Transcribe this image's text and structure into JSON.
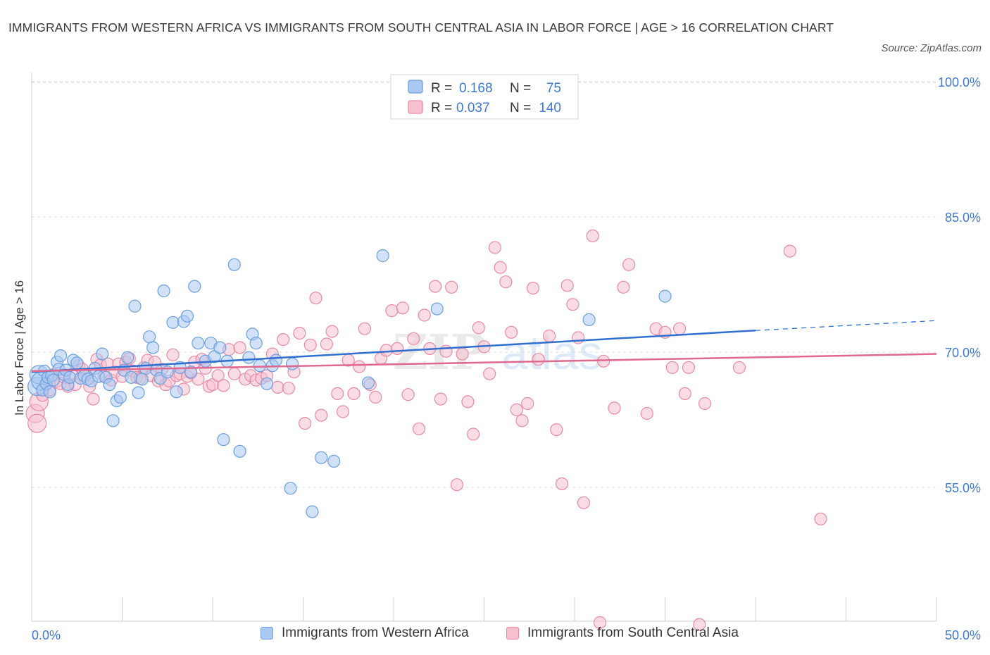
{
  "header": {
    "title": "IMMIGRANTS FROM WESTERN AFRICA VS IMMIGRANTS FROM SOUTH CENTRAL ASIA IN LABOR FORCE | AGE > 16 CORRELATION CHART",
    "source": "Source: ZipAtlas.com"
  },
  "colors": {
    "blue_fill": "#a9c9f2",
    "blue_stroke": "#6a9fe0",
    "blue_line": "#2f6fd0",
    "pink_fill": "#f6c0cf",
    "pink_stroke": "#e98aa5",
    "pink_line": "#e0688e",
    "axis_text": "#3f78d0",
    "grid": "#dddddd"
  },
  "legend_top": {
    "rows": [
      {
        "r_label": "R =",
        "r_value": "0.168",
        "n_label": "N =",
        "n_value": "75"
      },
      {
        "r_label": "R =",
        "r_value": "0.037",
        "n_label": "N =",
        "n_value": "140"
      }
    ]
  },
  "legend_bottom": {
    "items": [
      "Immigrants from Western Africa",
      "Immigrants from South Central Asia"
    ]
  },
  "watermark": {
    "zip": "ZIP",
    "atlas": "atlas"
  },
  "chart_data": {
    "type": "scatter",
    "title": "IMMIGRANTS FROM WESTERN AFRICA VS IMMIGRANTS FROM SOUTH CENTRAL ASIA IN LABOR FORCE | AGE > 16 CORRELATION CHART",
    "xlabel": "",
    "ylabel": "In Labor Force | Age > 16",
    "xlim": [
      0,
      50
    ],
    "ylim": [
      37.5,
      102
    ],
    "x_tick_labels": [
      "0.0%",
      "50.0%"
    ],
    "y_ticks": [
      55,
      70,
      85,
      100
    ],
    "y_tick_labels": [
      "55.0%",
      "70.0%",
      "85.0%",
      "100.0%"
    ],
    "grid": true,
    "legend_position": "top-center",
    "series": [
      {
        "name": "Immigrants from Western Africa",
        "R": 0.168,
        "N": 75,
        "trend": {
          "x0": 0,
          "y0": 67.8,
          "x1": 40,
          "y1": 72.4,
          "dash_to_x": 50,
          "dash_to_y": 73.5
        },
        "points": [
          [
            0.3,
            66.2
          ],
          [
            0.4,
            67.5
          ],
          [
            0.5,
            66.8
          ],
          [
            0.6,
            65.8
          ],
          [
            0.7,
            67.9
          ],
          [
            0.8,
            66.5
          ],
          [
            0.9,
            67.2
          ],
          [
            1.0,
            65.6
          ],
          [
            1.1,
            67.4
          ],
          [
            1.2,
            66.9
          ],
          [
            1.4,
            68.9
          ],
          [
            1.5,
            68.1
          ],
          [
            1.6,
            69.6
          ],
          [
            1.8,
            67.5
          ],
          [
            1.9,
            68.0
          ],
          [
            2.0,
            66.4
          ],
          [
            2.1,
            67.2
          ],
          [
            2.3,
            69.1
          ],
          [
            2.5,
            68.8
          ],
          [
            2.7,
            67.1
          ],
          [
            2.9,
            67.4
          ],
          [
            3.1,
            67.0
          ],
          [
            3.3,
            66.8
          ],
          [
            3.5,
            68.2
          ],
          [
            3.7,
            67.3
          ],
          [
            3.9,
            69.8
          ],
          [
            4.1,
            67.2
          ],
          [
            4.3,
            66.4
          ],
          [
            4.5,
            62.4
          ],
          [
            4.7,
            64.6
          ],
          [
            4.9,
            65.0
          ],
          [
            5.1,
            68.0
          ],
          [
            5.3,
            69.4
          ],
          [
            5.5,
            67.2
          ],
          [
            5.7,
            75.1
          ],
          [
            5.9,
            65.5
          ],
          [
            6.1,
            67.0
          ],
          [
            6.3,
            68.2
          ],
          [
            6.5,
            71.7
          ],
          [
            6.7,
            70.5
          ],
          [
            6.9,
            68.0
          ],
          [
            7.1,
            67.1
          ],
          [
            7.3,
            76.8
          ],
          [
            7.5,
            67.8
          ],
          [
            7.8,
            73.3
          ],
          [
            8.0,
            65.6
          ],
          [
            8.2,
            68.3
          ],
          [
            8.4,
            73.4
          ],
          [
            8.6,
            74.0
          ],
          [
            8.8,
            67.8
          ],
          [
            9.0,
            77.3
          ],
          [
            9.2,
            71.0
          ],
          [
            9.6,
            69.0
          ],
          [
            9.9,
            71.0
          ],
          [
            10.1,
            69.5
          ],
          [
            10.4,
            70.5
          ],
          [
            10.6,
            60.3
          ],
          [
            10.8,
            69.0
          ],
          [
            11.2,
            79.7
          ],
          [
            11.5,
            59.0
          ],
          [
            12.0,
            69.4
          ],
          [
            12.2,
            72.0
          ],
          [
            12.4,
            71.0
          ],
          [
            12.6,
            68.5
          ],
          [
            13.0,
            66.5
          ],
          [
            13.3,
            68.5
          ],
          [
            13.5,
            69.1
          ],
          [
            14.4,
            68.7
          ],
          [
            14.3,
            54.9
          ],
          [
            15.5,
            52.3
          ],
          [
            16.0,
            58.3
          ],
          [
            16.7,
            57.9
          ],
          [
            18.6,
            66.6
          ],
          [
            19.4,
            80.7
          ],
          [
            22.4,
            74.8
          ],
          [
            30.8,
            73.6
          ],
          [
            35.0,
            76.2
          ]
        ]
      },
      {
        "name": "Immigrants from South Central Asia",
        "R": 0.037,
        "N": 140,
        "trend": {
          "x0": 0,
          "y0": 67.9,
          "x1": 50,
          "y1": 69.8
        },
        "points": [
          [
            0.2,
            63.2
          ],
          [
            0.3,
            62.1
          ],
          [
            0.4,
            64.5
          ],
          [
            0.6,
            65.2
          ],
          [
            0.8,
            66.4
          ],
          [
            1.0,
            65.8
          ],
          [
            1.2,
            67.5
          ],
          [
            1.4,
            66.8
          ],
          [
            1.6,
            66.5
          ],
          [
            1.8,
            67.2
          ],
          [
            2.0,
            66.2
          ],
          [
            2.2,
            67.5
          ],
          [
            2.4,
            66.4
          ],
          [
            2.6,
            68.5
          ],
          [
            2.8,
            68.1
          ],
          [
            3.0,
            67.5
          ],
          [
            3.2,
            66.2
          ],
          [
            3.4,
            64.8
          ],
          [
            3.6,
            69.2
          ],
          [
            3.8,
            68.6
          ],
          [
            4.0,
            67.3
          ],
          [
            4.2,
            68.7
          ],
          [
            4.4,
            66.9
          ],
          [
            4.6,
            67.8
          ],
          [
            4.8,
            68.7
          ],
          [
            5.0,
            67.3
          ],
          [
            5.2,
            68.9
          ],
          [
            5.4,
            69.3
          ],
          [
            5.6,
            67.9
          ],
          [
            5.8,
            67.2
          ],
          [
            6.0,
            67.1
          ],
          [
            6.2,
            68.3
          ],
          [
            6.4,
            69.1
          ],
          [
            6.6,
            67.4
          ],
          [
            6.8,
            68.9
          ],
          [
            7.0,
            66.8
          ],
          [
            7.2,
            68.1
          ],
          [
            7.4,
            66.4
          ],
          [
            7.6,
            66.8
          ],
          [
            7.8,
            69.7
          ],
          [
            8.0,
            67.4
          ],
          [
            8.2,
            67.6
          ],
          [
            8.4,
            65.9
          ],
          [
            8.6,
            67.3
          ],
          [
            8.8,
            67.7
          ],
          [
            9.0,
            68.9
          ],
          [
            9.2,
            67.0
          ],
          [
            9.4,
            69.2
          ],
          [
            9.6,
            68.2
          ],
          [
            9.8,
            66.2
          ],
          [
            10.0,
            66.4
          ],
          [
            10.3,
            67.4
          ],
          [
            10.6,
            66.3
          ],
          [
            10.9,
            70.3
          ],
          [
            11.2,
            67.6
          ],
          [
            11.5,
            70.5
          ],
          [
            11.8,
            67.0
          ],
          [
            12.1,
            67.4
          ],
          [
            12.4,
            66.9
          ],
          [
            12.7,
            67.1
          ],
          [
            13.0,
            67.4
          ],
          [
            13.3,
            69.8
          ],
          [
            13.6,
            66.1
          ],
          [
            13.9,
            71.4
          ],
          [
            14.2,
            66.0
          ],
          [
            14.5,
            67.8
          ],
          [
            14.8,
            72.1
          ],
          [
            15.1,
            62.1
          ],
          [
            15.4,
            70.8
          ],
          [
            15.7,
            76.0
          ],
          [
            16.0,
            63.0
          ],
          [
            16.3,
            70.9
          ],
          [
            16.6,
            72.3
          ],
          [
            16.9,
            65.4
          ],
          [
            17.2,
            63.4
          ],
          [
            17.5,
            69.1
          ],
          [
            17.8,
            65.4
          ],
          [
            18.1,
            68.4
          ],
          [
            18.4,
            72.6
          ],
          [
            18.7,
            66.4
          ],
          [
            19.0,
            65.0
          ],
          [
            19.3,
            69.3
          ],
          [
            19.6,
            70.2
          ],
          [
            19.9,
            74.6
          ],
          [
            20.2,
            70.4
          ],
          [
            20.5,
            74.9
          ],
          [
            20.8,
            65.3
          ],
          [
            21.1,
            71.5
          ],
          [
            21.4,
            61.5
          ],
          [
            21.7,
            74.1
          ],
          [
            22.0,
            70.4
          ],
          [
            22.3,
            77.3
          ],
          [
            22.6,
            64.8
          ],
          [
            22.9,
            70.1
          ],
          [
            23.2,
            77.2
          ],
          [
            23.5,
            55.3
          ],
          [
            23.8,
            69.8
          ],
          [
            24.1,
            64.5
          ],
          [
            24.4,
            60.9
          ],
          [
            24.7,
            72.7
          ],
          [
            25.0,
            70.6
          ],
          [
            25.3,
            67.6
          ],
          [
            25.6,
            81.6
          ],
          [
            25.9,
            79.4
          ],
          [
            26.2,
            77.8
          ],
          [
            26.5,
            72.2
          ],
          [
            26.8,
            63.6
          ],
          [
            27.1,
            62.4
          ],
          [
            27.4,
            64.3
          ],
          [
            27.7,
            77.1
          ],
          [
            28.0,
            69.2
          ],
          [
            28.6,
            71.8
          ],
          [
            29.0,
            61.4
          ],
          [
            29.3,
            55.4
          ],
          [
            29.6,
            77.4
          ],
          [
            29.9,
            75.3
          ],
          [
            30.2,
            71.6
          ],
          [
            30.5,
            53.3
          ],
          [
            31.0,
            82.9
          ],
          [
            31.6,
            69.0
          ],
          [
            32.2,
            63.8
          ],
          [
            32.7,
            77.2
          ],
          [
            33.0,
            79.7
          ],
          [
            34.0,
            63.2
          ],
          [
            34.5,
            72.6
          ],
          [
            35.0,
            72.2
          ],
          [
            35.4,
            68.3
          ],
          [
            35.8,
            72.6
          ],
          [
            36.1,
            65.4
          ],
          [
            36.3,
            68.3
          ],
          [
            37.2,
            64.3
          ],
          [
            39.1,
            68.3
          ],
          [
            41.9,
            81.2
          ],
          [
            43.6,
            51.5
          ],
          [
            31.4,
            40.0
          ],
          [
            36.9,
            39.8
          ]
        ]
      }
    ]
  }
}
